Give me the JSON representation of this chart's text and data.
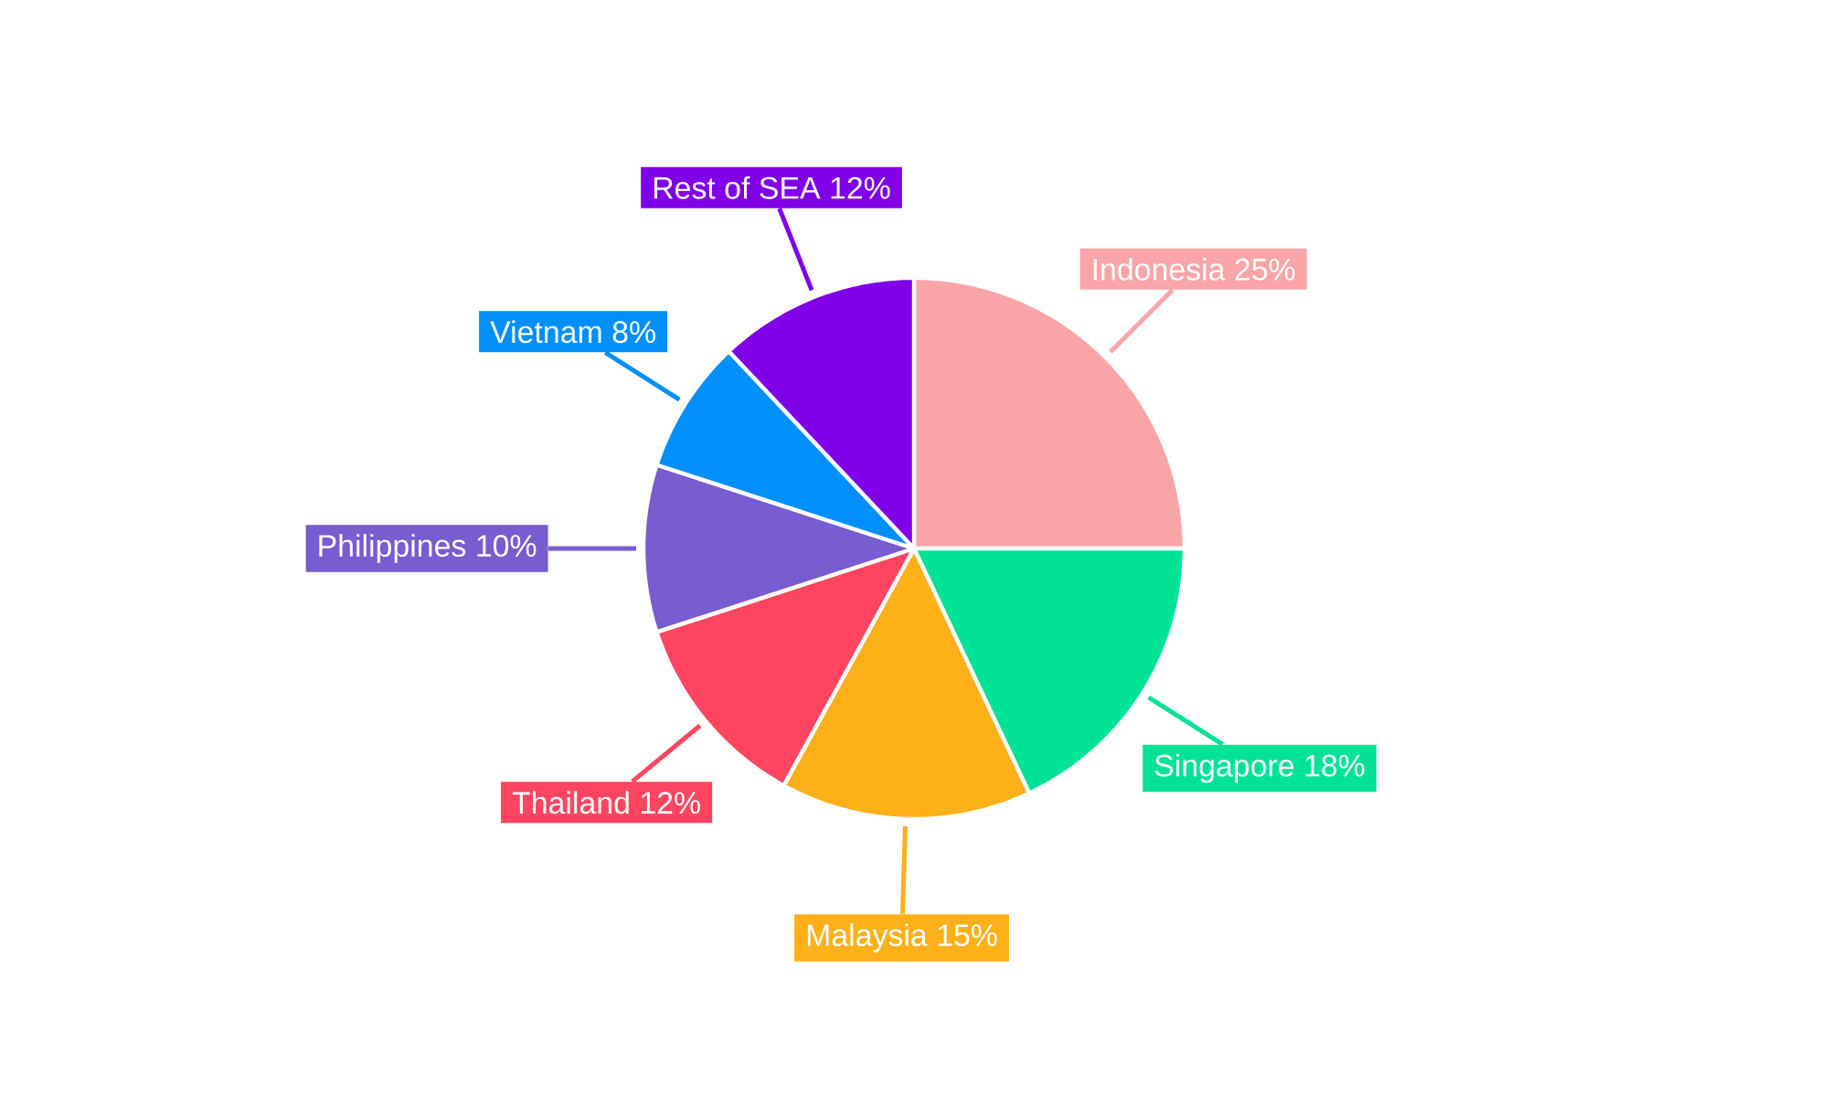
{
  "chart_data": {
    "type": "pie",
    "categories": [
      "Indonesia",
      "Singapore",
      "Malaysia",
      "Thailand",
      "Philippines",
      "Vietnam",
      "Rest of SEA"
    ],
    "values": [
      25,
      18,
      15,
      12,
      10,
      8,
      12
    ],
    "value_labels": [
      "25%",
      "18%",
      "15%",
      "12%",
      "10%",
      "8%",
      "12%"
    ],
    "colors": [
      "#f9a5a7",
      "#00e396",
      "#feb019",
      "#ff4560",
      "#775dd0",
      "#008ffb",
      "#8000e8"
    ]
  }
}
